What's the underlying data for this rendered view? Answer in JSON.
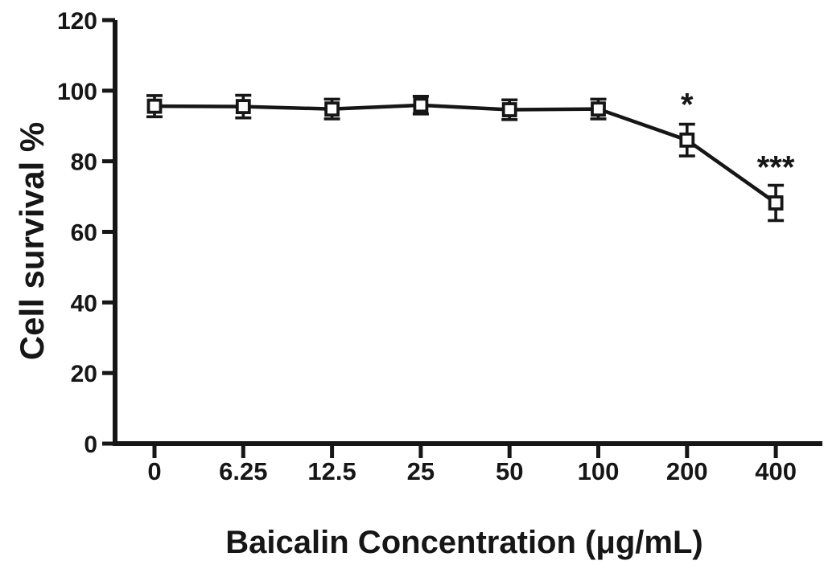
{
  "chart_data": {
    "type": "line",
    "title": "",
    "xlabel": "Baicalin Concentration (μg/mL)",
    "ylabel": "Cell survival %",
    "categories": [
      "0",
      "6.25",
      "12.5",
      "25",
      "50",
      "100",
      "200",
      "400"
    ],
    "series": [
      {
        "name": "Cell survival",
        "marker": "open-square",
        "color": "#161616",
        "values": [
          95.6,
          95.5,
          94.8,
          95.9,
          94.6,
          94.8,
          86.0,
          68.2
        ],
        "errors": [
          3.0,
          3.2,
          2.8,
          2.5,
          2.8,
          2.8,
          4.5,
          5.0
        ]
      }
    ],
    "ylim": [
      0,
      120
    ],
    "yticks": [
      0,
      20,
      40,
      60,
      80,
      100,
      120
    ],
    "grid": false,
    "legend": false,
    "annotations": [
      {
        "category": "200",
        "text": "*"
      },
      {
        "category": "400",
        "text": "***"
      }
    ]
  },
  "colors": {
    "axis": "#161616",
    "marker_fill": "#ffffff",
    "background": "#ffffff"
  }
}
